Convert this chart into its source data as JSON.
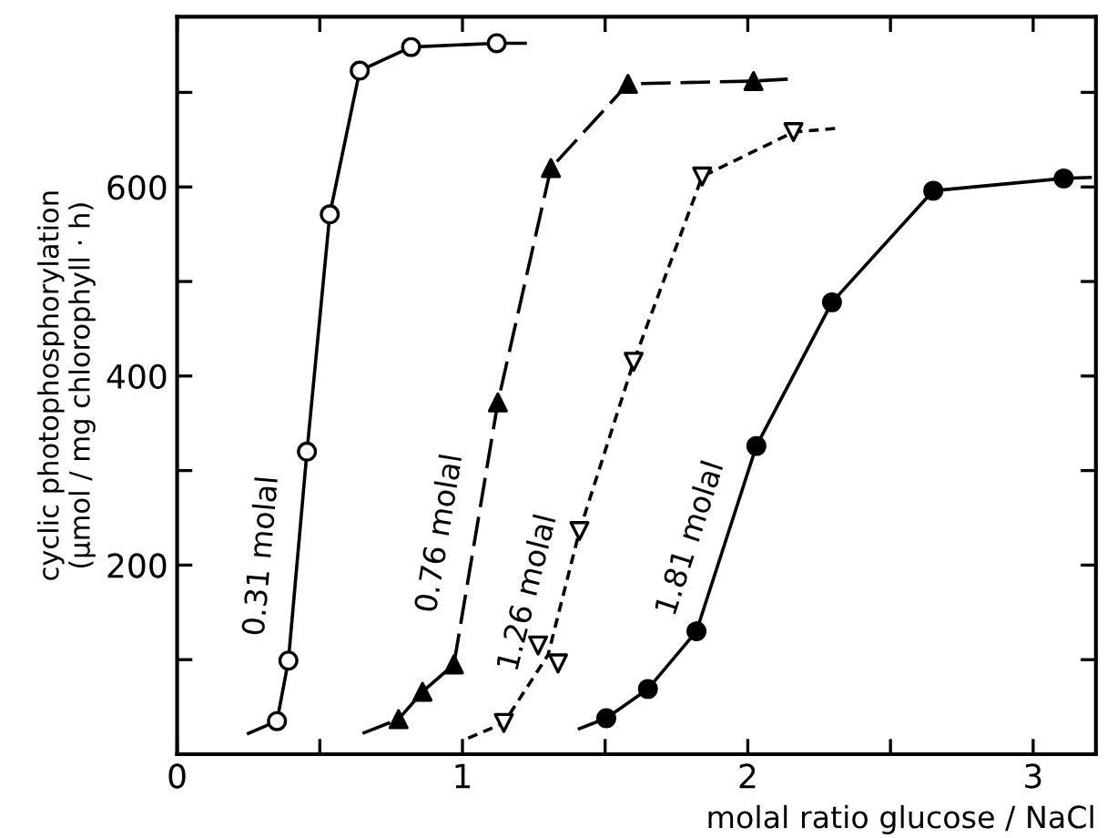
{
  "chart_data": {
    "type": "line",
    "xlabel": "molal ratio glucose / NaCl",
    "ylabel": "cyclic photophosphorylation\n(µmol / mg chlorophyll · h)",
    "xlim": [
      0,
      3.22
    ],
    "ylim": [
      0,
      780
    ],
    "xticks": [
      0,
      {
        "value": 0.5,
        "label": null
      },
      1,
      {
        "value": 1.5,
        "label": null
      },
      2,
      {
        "value": 2.5,
        "label": null
      },
      3
    ],
    "yticks": [
      {
        "value": 100,
        "label": null
      },
      200,
      {
        "value": 300,
        "label": null
      },
      400,
      {
        "value": 500,
        "label": null
      },
      600,
      {
        "value": 700,
        "label": null
      }
    ],
    "grid": false,
    "legend": false,
    "series": [
      {
        "type": "line",
        "name": "0.31 molal",
        "color": "#000000",
        "line_style": "solid",
        "x": [
          0.25,
          0.35,
          0.39,
          0.455,
          0.535,
          0.64,
          0.82,
          1.12,
          1.22
        ],
        "values": [
          22,
          35,
          99,
          320,
          571,
          723,
          748,
          752,
          752
        ]
      },
      {
        "type": "scatter",
        "marker": "circle",
        "color": "#ffffff",
        "x": [
          0.35,
          0.39,
          0.455,
          0.535,
          0.64,
          0.82,
          1.12
        ],
        "values": [
          35,
          99,
          320,
          571,
          723,
          748,
          752
        ]
      },
      {
        "type": "line",
        "name": "0.76 molal",
        "color": "#000000",
        "line_style": "dashed",
        "x": [
          0.65,
          0.776,
          0.86,
          0.97,
          1.124,
          1.31,
          1.58,
          2.02,
          2.14
        ],
        "values": [
          22,
          37,
          66,
          95,
          372,
          620,
          709,
          712,
          714
        ]
      },
      {
        "type": "scatter",
        "marker": "triangle",
        "color": "#000000",
        "x": [
          0.776,
          0.86,
          0.97,
          1.124,
          1.31,
          1.58,
          2.02
        ],
        "values": [
          37,
          66,
          95,
          372,
          620,
          709,
          712
        ]
      },
      {
        "type": "line",
        "name": "1.26 molal",
        "color": "#000000",
        "line_style": "dotted",
        "x": [
          1.02,
          1.145,
          1.3,
          1.41,
          1.6,
          1.84,
          2.16,
          2.31
        ],
        "values": [
          17,
          33,
          105,
          236,
          415,
          611,
          658,
          662
        ]
      },
      {
        "type": "scatter",
        "marker": "triangle_down",
        "color": "#ffffff",
        "x": [
          1.145,
          1.265,
          1.335,
          1.41,
          1.6,
          1.84,
          2.16
        ],
        "values": [
          33,
          115,
          96,
          236,
          415,
          611,
          658
        ]
      },
      {
        "type": "line",
        "name": "1.81 molal",
        "color": "#000000",
        "line_style": "solid",
        "x": [
          1.41,
          1.504,
          1.65,
          1.82,
          2.03,
          2.295,
          2.65,
          3.107,
          3.2
        ],
        "values": [
          27,
          38,
          69,
          130,
          326,
          478,
          596,
          609,
          610
        ]
      },
      {
        "type": "scatter",
        "marker": "circle",
        "color": "#000000",
        "x": [
          1.504,
          1.65,
          1.82,
          2.03,
          2.295,
          2.65,
          3.107
        ],
        "values": [
          38,
          69,
          130,
          326,
          478,
          596,
          609
        ]
      }
    ]
  }
}
